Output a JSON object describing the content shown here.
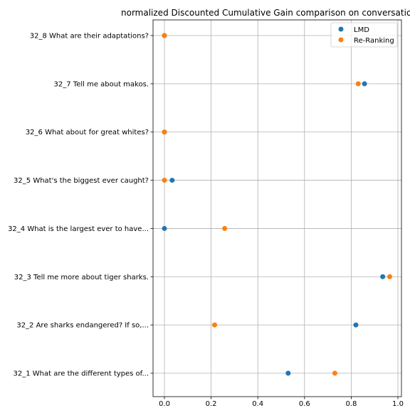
{
  "chart_data": {
    "type": "scatter",
    "title": "normalized Discounted Cumulative Gain comparison on conversation",
    "xlabel": "",
    "ylabel": "",
    "xlim": [
      -0.05,
      1.0
    ],
    "x_ticks": [
      "0.0",
      "0.2",
      "0.4",
      "0.6",
      "0.8",
      "1.0"
    ],
    "x_tick_values": [
      0.0,
      0.2,
      0.4,
      0.6,
      0.8,
      1.0
    ],
    "categories": [
      "32_1 What are the different types of...",
      "32_2 Are sharks endangered? If so,...",
      "32_3 Tell me more about tiger sharks.",
      "32_4 What is the largest ever to have...",
      "32_5 What's the biggest ever caught?",
      "32_6 What about for great whites?",
      "32_7 Tell me about makos.",
      "32_8 What are their adaptations?"
    ],
    "series": [
      {
        "name": "LMD",
        "color": "#1f77b4",
        "values": [
          0.53,
          0.82,
          0.935,
          0.0,
          0.033,
          0.0,
          0.857,
          0.0
        ]
      },
      {
        "name": "Re-Ranking",
        "color": "#ff7f0e",
        "values": [
          0.73,
          0.215,
          0.965,
          0.258,
          0.0,
          0.0,
          0.83,
          0.0
        ]
      }
    ],
    "grid": true,
    "legend_position": "upper right"
  }
}
